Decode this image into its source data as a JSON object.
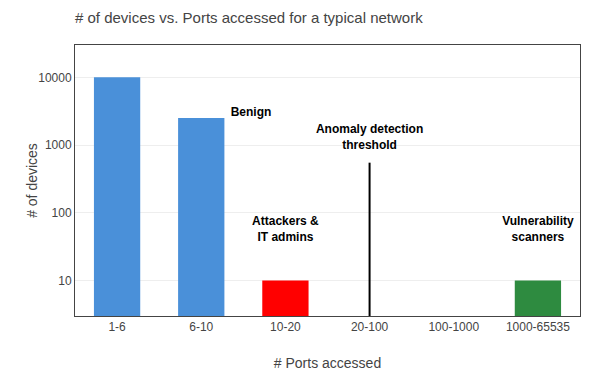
{
  "chart_data": {
    "type": "bar",
    "title": "# of devices vs. Ports accessed for a typical network",
    "xlabel": "# Ports accessed",
    "ylabel": "# of devices",
    "categories": [
      "1-6",
      "6-10",
      "10-20",
      "20-100",
      "100-1000",
      "1000-65535"
    ],
    "values": [
      10000,
      2500,
      10,
      null,
      null,
      10
    ],
    "colors": [
      "#4A90D9",
      "#4A90D9",
      "#FF0000",
      null,
      null,
      "#2E8B40"
    ],
    "log": "y",
    "ylim": [
      3,
      30000
    ],
    "yticks": [
      10,
      100,
      1000,
      10000
    ],
    "grid": true,
    "annotations": [
      {
        "text": "Benign",
        "x": 1.35,
        "y": 3000
      },
      {
        "text": "Attackers &\nIT admins",
        "x": 2,
        "y": 35
      },
      {
        "text": "Anomaly detection\nthreshold",
        "x": 3.0,
        "y": 800
      },
      {
        "text": "Vulnerability\nscanners",
        "x": 5,
        "y": 35
      }
    ],
    "threshold": {
      "x": 3,
      "y": [
        3,
        550
      ]
    }
  }
}
